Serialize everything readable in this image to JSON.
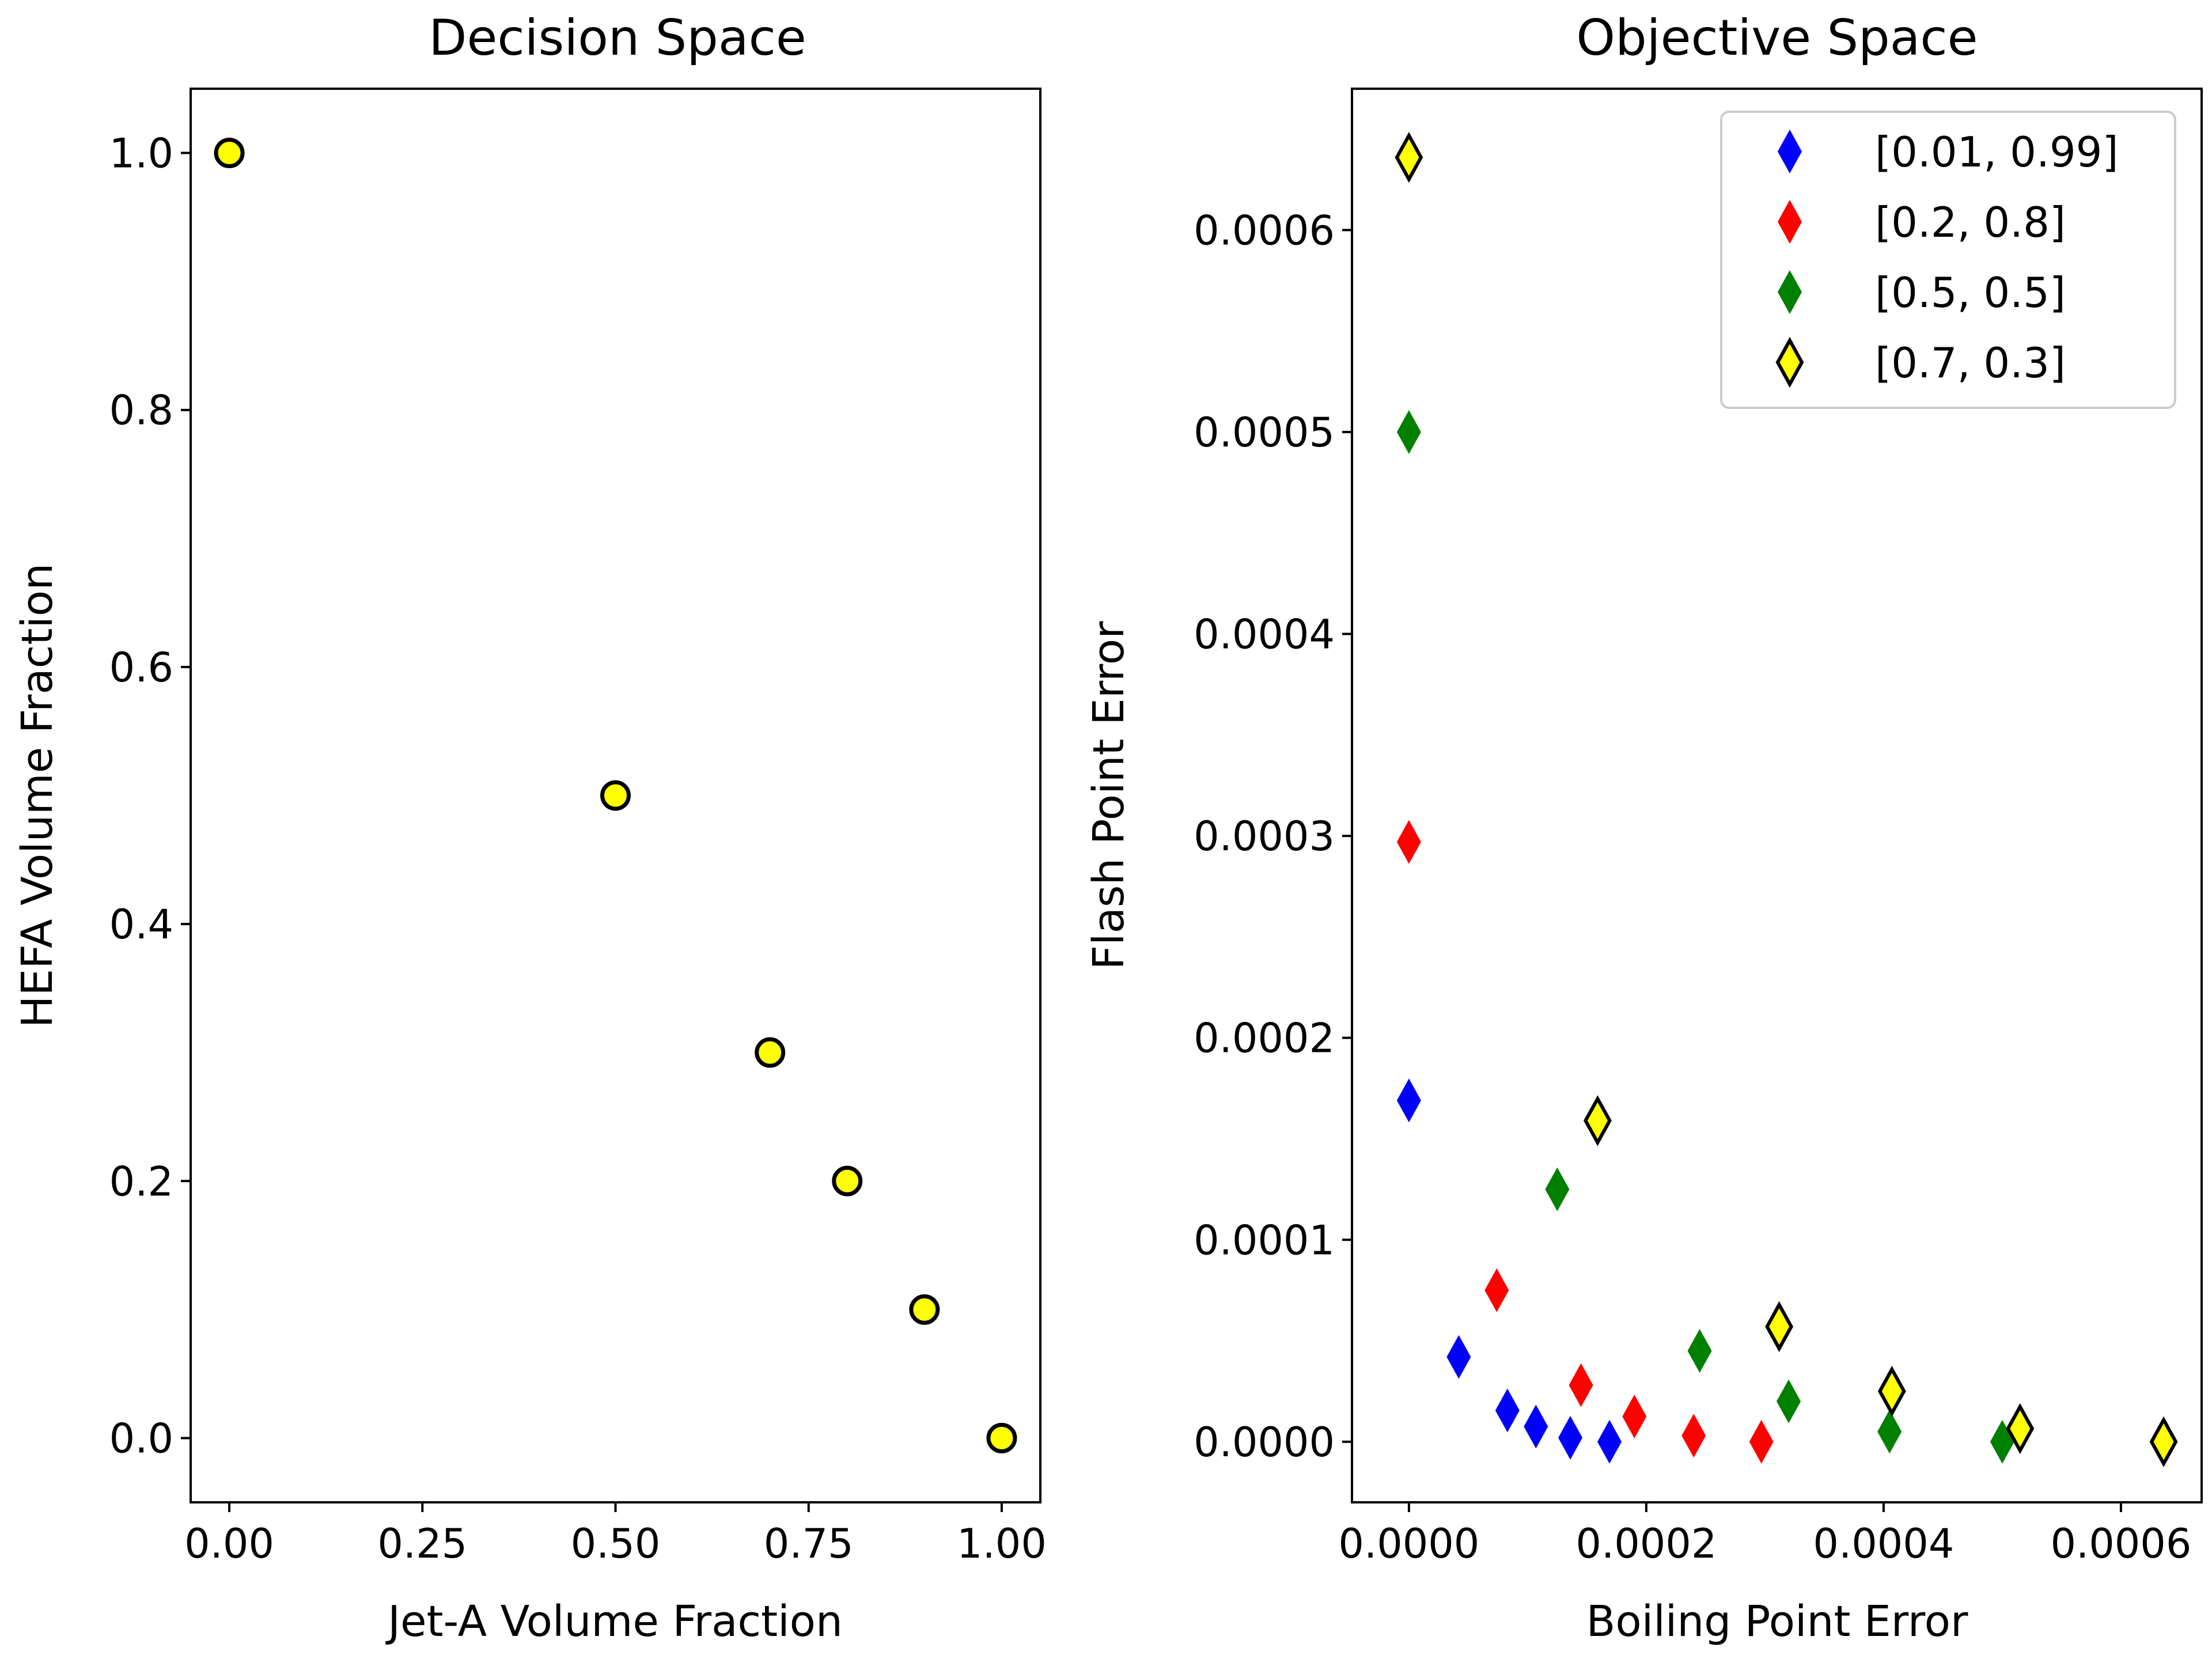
{
  "colors": {
    "blue": "#0000ff",
    "red": "#ff0000",
    "green": "#008000",
    "yellow": "#ffff00",
    "edge": "#000000",
    "legend_edge": "#cccccc"
  },
  "chart_data": [
    {
      "type": "scatter",
      "title": "Decision Space",
      "xlabel": "Jet-A Volume Fraction",
      "ylabel": "HEFA Volume Fraction",
      "xlim": [
        -0.05,
        1.05
      ],
      "ylim": [
        -0.05,
        1.05
      ],
      "xticks": [
        0.0,
        0.25,
        0.5,
        0.75,
        1.0
      ],
      "xtick_labels": [
        "0.00",
        "0.25",
        "0.50",
        "0.75",
        "1.00"
      ],
      "yticks": [
        0.0,
        0.2,
        0.4,
        0.6,
        0.8,
        1.0
      ],
      "ytick_labels": [
        "0.0",
        "0.2",
        "0.4",
        "0.6",
        "0.8",
        "1.0"
      ],
      "grid": false,
      "series": [
        {
          "marker": "circle",
          "color": "#ffff00",
          "points": [
            [
              0.0,
              1.0
            ],
            [
              0.5,
              0.5
            ],
            [
              0.7,
              0.3
            ],
            [
              0.8,
              0.2
            ],
            [
              0.9,
              0.1
            ],
            [
              1.0,
              0.0
            ]
          ]
        }
      ]
    },
    {
      "type": "scatter",
      "title": "Objective Space",
      "xlabel": "Boiling Point Error",
      "ylabel": "Flash Point Error",
      "xlim": [
        -4.8e-05,
        0.000668
      ],
      "ylim": [
        -3e-05,
        0.00067
      ],
      "xticks": [
        0.0,
        0.0002,
        0.0004,
        0.0006
      ],
      "xtick_labels": [
        "0.0000",
        "0.0002",
        "0.0004",
        "0.0006"
      ],
      "yticks": [
        0.0,
        0.0001,
        0.0002,
        0.0003,
        0.0004,
        0.0005,
        0.0006
      ],
      "ytick_labels": [
        "0.0000",
        "0.0001",
        "0.0002",
        "0.0003",
        "0.0004",
        "0.0005",
        "0.0006"
      ],
      "grid": false,
      "legend_position": "top-right",
      "series": [
        {
          "name": "[0.01, 0.99]",
          "marker": "diamond",
          "color": "#0000ff",
          "outlined": false,
          "points": [
            [
              0.0,
              0.000169
            ],
            [
              4.2e-05,
              4.2e-05
            ],
            [
              8.3e-05,
              1.55e-05
            ],
            [
              0.000107,
              7.5e-06
            ],
            [
              0.000136,
              2e-06
            ],
            [
              0.000169,
              0.0
            ]
          ]
        },
        {
          "name": "[0.2, 0.8]",
          "marker": "diamond",
          "color": "#ff0000",
          "outlined": false,
          "points": [
            [
              0.0,
              0.000297
            ],
            [
              7.4e-05,
              7.5e-05
            ],
            [
              0.000145,
              2.8e-05
            ],
            [
              0.00019,
              1.25e-05
            ],
            [
              0.00024,
              3e-06
            ],
            [
              0.000297,
              0.0
            ]
          ]
        },
        {
          "name": "[0.5, 0.5]",
          "marker": "diamond",
          "color": "#008000",
          "outlined": false,
          "points": [
            [
              0.0,
              0.0005
            ],
            [
              0.000125,
              0.000125
            ],
            [
              0.000245,
              4.5e-05
            ],
            [
              0.00032,
              2e-05
            ],
            [
              0.000405,
              5e-06
            ],
            [
              0.0005,
              0.0
            ]
          ]
        },
        {
          "name": "[0.7, 0.3]",
          "marker": "diamond",
          "color": "#ffff00",
          "outlined": true,
          "points": [
            [
              0.0,
              0.000636
            ],
            [
              0.000159,
              0.000159
            ],
            [
              0.000312,
              5.7e-05
            ],
            [
              0.000407,
              2.5e-05
            ],
            [
              0.000515,
              6.5e-06
            ],
            [
              0.000636,
              0.0
            ]
          ]
        }
      ]
    }
  ]
}
